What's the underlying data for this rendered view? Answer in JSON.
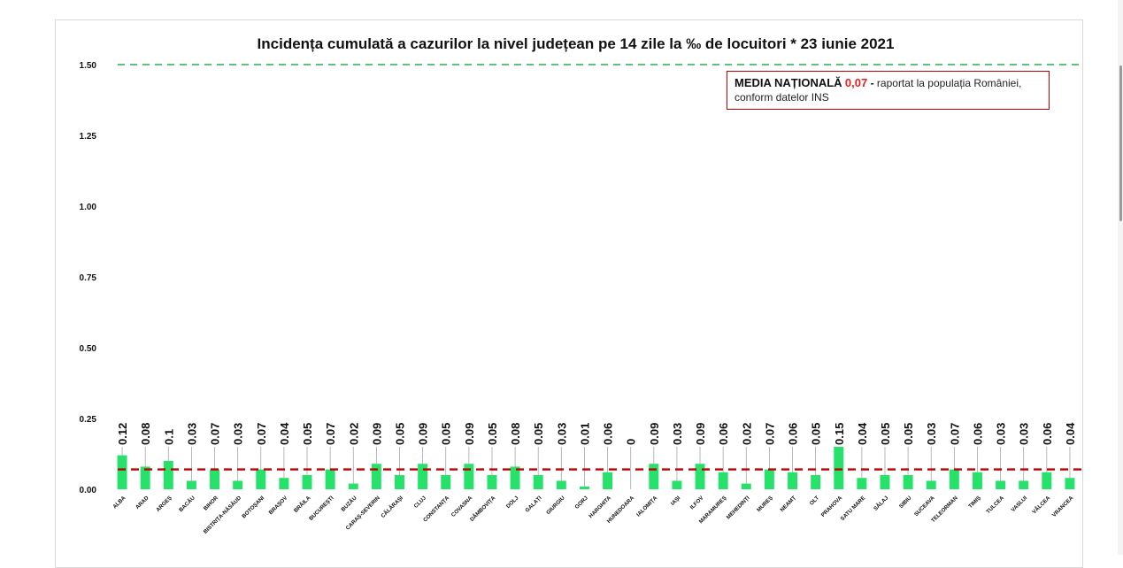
{
  "chart_data": {
    "type": "bar",
    "title": "Incidența cumulată a cazurilor la nivel județean pe 14 zile la ‰ de locuitori *  23 iunie 2021",
    "xlabel": "",
    "ylabel": "",
    "ylim": [
      0,
      1.5
    ],
    "yticks": [
      "0.00",
      "0.25",
      "0.50",
      "0.75",
      "1.00",
      "1.25",
      "1.50"
    ],
    "ytick_values": [
      0,
      0.25,
      0.5,
      0.75,
      1.0,
      1.25,
      1.5
    ],
    "grid": false,
    "categories": [
      "ALBA",
      "ARAD",
      "ARGEȘ",
      "BACĂU",
      "BIHOR",
      "BISTRIȚA-NĂSĂUD",
      "BOTOȘANI",
      "BRAȘOV",
      "BRĂILA",
      "BUCUREȘTI",
      "BUZĂU",
      "CARAȘ-SEVERIN",
      "CĂLĂRAȘI",
      "CLUJ",
      "CONSTANȚA",
      "COVASNA",
      "DÂMBOVIȚA",
      "DOLJ",
      "GALAȚI",
      "GIURGIU",
      "GORJ",
      "HARGHITA",
      "HUNEDOARA",
      "IALOMIȚA",
      "IAȘI",
      "ILFOV",
      "MARAMUREȘ",
      "MEHEDINȚI",
      "MUREȘ",
      "NEAMȚ",
      "OLT",
      "PRAHOVA",
      "SATU MARE",
      "SĂLAJ",
      "SIBIU",
      "SUCEAVA",
      "TELEORMAN",
      "TIMIȘ",
      "TULCEA",
      "VASLUI",
      "VÂLCEA",
      "VRANCEA"
    ],
    "values": [
      0.12,
      0.08,
      0.1,
      0.03,
      0.07,
      0.03,
      0.07,
      0.04,
      0.05,
      0.07,
      0.02,
      0.09,
      0.05,
      0.09,
      0.05,
      0.09,
      0.05,
      0.08,
      0.05,
      0.03,
      0.01,
      0.06,
      0,
      0.09,
      0.03,
      0.09,
      0.06,
      0.02,
      0.07,
      0.06,
      0.05,
      0.15,
      0.04,
      0.05,
      0.05,
      0.03,
      0.07,
      0.06,
      0.03,
      0.03,
      0.06,
      0.04
    ],
    "labels": [
      "0.12",
      "0.08",
      "0.1",
      "0.03",
      "0.07",
      "0.03",
      "0.07",
      "0.04",
      "0.05",
      "0.07",
      "0.02",
      "0.09",
      "0.05",
      "0.09",
      "0.05",
      "0.09",
      "0.05",
      "0.08",
      "0.05",
      "0.03",
      "0.01",
      "0.06",
      "0",
      "0.09",
      "0.03",
      "0.09",
      "0.06",
      "0.02",
      "0.07",
      "0.06",
      "0.05",
      "0.15",
      "0.04",
      "0.05",
      "0.05",
      "0.03",
      "0.07",
      "0.06",
      "0.03",
      "0.03",
      "0.06",
      "0.04"
    ],
    "national_average": 0.07,
    "threshold": 1.5,
    "colors": {
      "bar": "#27e26a",
      "threshold_line": "#22b14c",
      "average_line": "#c00000",
      "text": "#111111"
    }
  },
  "legend": {
    "label": "MEDIA NAȚIONALĂ",
    "value": "0,07",
    "separator": "-",
    "text": "raportat la populația României, conform datelor INS"
  }
}
